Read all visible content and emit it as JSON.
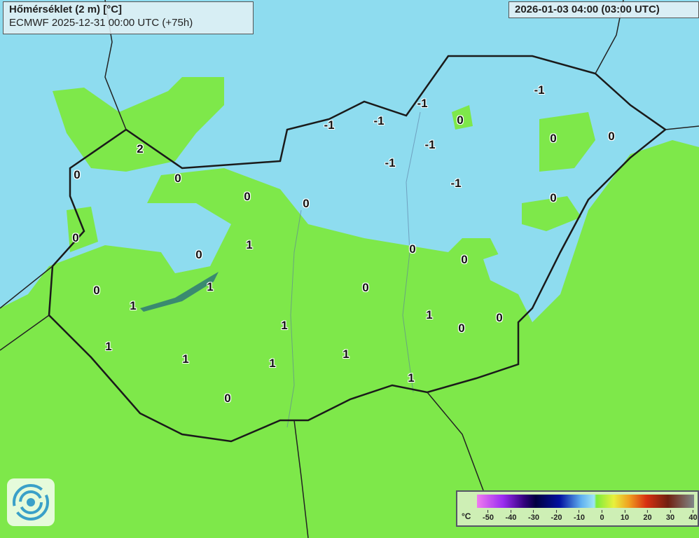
{
  "title": {
    "line1": "Hőmérséklet (2 m) [°C]",
    "line2": "ECMWF 2025-12-31 00:00 UTC (+75h)"
  },
  "valid_time": "2026-01-03 04:00 (03:00 UTC)",
  "legend": {
    "unit": "°C",
    "ticks": [
      "-50",
      "-40",
      "-30",
      "-20",
      "-10",
      "0",
      "10",
      "20",
      "30",
      "40"
    ]
  },
  "colors": {
    "cold_area": "#8edcef",
    "zero_plus_area": "#7ee84a",
    "border": "#111111"
  },
  "labels": [
    "0",
    "2",
    "0",
    "0",
    "0",
    "0",
    "0",
    "1",
    "0",
    "1",
    "1",
    "0",
    "1",
    "1",
    "1",
    "1",
    "1",
    "0",
    "1",
    "1",
    "0",
    "0",
    "0",
    "0",
    "0",
    "0",
    "0",
    "0",
    "-1",
    "-1",
    "-1",
    "-1",
    "-1",
    "-1",
    "-1"
  ],
  "logo": "ecmwf-logo"
}
